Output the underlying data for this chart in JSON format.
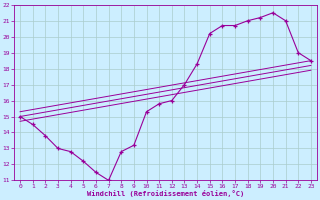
{
  "xlabel": "Windchill (Refroidissement éolien,°C)",
  "bg_color": "#cceeff",
  "line_color": "#990099",
  "grid_color": "#aacccc",
  "xlim": [
    -0.5,
    23.5
  ],
  "ylim": [
    11,
    22
  ],
  "xticks": [
    0,
    1,
    2,
    3,
    4,
    5,
    6,
    7,
    8,
    9,
    10,
    11,
    12,
    13,
    14,
    15,
    16,
    17,
    18,
    19,
    20,
    21,
    22,
    23
  ],
  "yticks": [
    11,
    12,
    13,
    14,
    15,
    16,
    17,
    18,
    19,
    20,
    21,
    22
  ],
  "main_line_x": [
    0,
    1,
    2,
    3,
    4,
    5,
    6,
    7,
    8,
    9,
    10,
    11,
    12,
    13,
    14,
    15,
    16,
    17,
    18,
    19,
    20,
    21,
    22,
    23
  ],
  "main_line_y": [
    15.0,
    14.5,
    13.8,
    13.0,
    12.8,
    12.2,
    11.5,
    11.0,
    12.8,
    13.2,
    15.3,
    15.8,
    16.0,
    17.0,
    18.3,
    20.2,
    20.7,
    20.7,
    21.0,
    21.2,
    21.5,
    21.0,
    19.0,
    18.5
  ],
  "reg_line1_x": [
    0,
    23
  ],
  "reg_line1_y": [
    15.0,
    18.2
  ],
  "reg_line2_x": [
    0,
    23
  ],
  "reg_line2_y": [
    15.3,
    18.5
  ],
  "reg_line3_x": [
    0,
    23
  ],
  "reg_line3_y": [
    14.7,
    17.9
  ]
}
